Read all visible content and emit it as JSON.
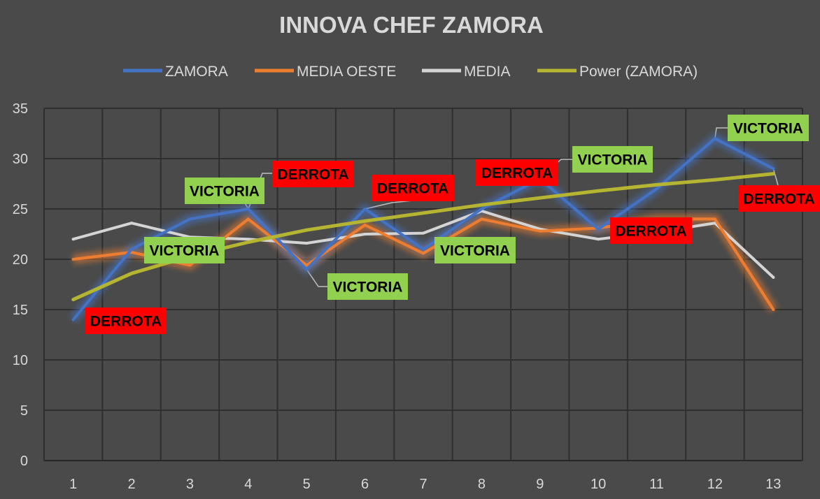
{
  "chart_data": {
    "type": "line",
    "title": "INNOVA CHEF ZAMORA",
    "xlabel": "",
    "ylabel": "",
    "categories": [
      "1",
      "2",
      "3",
      "4",
      "5",
      "6",
      "7",
      "8",
      "9",
      "10",
      "11",
      "12",
      "13"
    ],
    "ylim": [
      0,
      35
    ],
    "yticks": [
      "0",
      "5",
      "10",
      "15",
      "20",
      "25",
      "30",
      "35"
    ],
    "grid": true,
    "legend_position": "top",
    "series": [
      {
        "name": "ZAMORA",
        "color": "#4472c4",
        "glow": true,
        "values": [
          14,
          21,
          24,
          25,
          19,
          25,
          21,
          25,
          28,
          23,
          27,
          32,
          29
        ]
      },
      {
        "name": "MEDIA OESTE",
        "color": "#ed7d31",
        "glow": true,
        "values": [
          20,
          20.7,
          19.4,
          24,
          19.4,
          23.4,
          20.6,
          24,
          22.8,
          23.1,
          24,
          24,
          15
        ]
      },
      {
        "name": "MEDIA",
        "color": "#d4d4d4",
        "glow": false,
        "values": [
          22,
          23.6,
          22.2,
          22,
          21.6,
          22.5,
          22.6,
          24.8,
          23,
          22,
          22.7,
          23.6,
          18.2
        ]
      },
      {
        "name": "Power (ZAMORA)",
        "color": "#b5b531",
        "glow": false,
        "trendline": true,
        "values": [
          16,
          18.6,
          20.3,
          21.7,
          22.9,
          23.8,
          24.6,
          25.4,
          26.1,
          26.8,
          27.4,
          27.9,
          28.5
        ]
      }
    ],
    "annotations": [
      {
        "point": 1,
        "text": "DERROTA",
        "result": "loss"
      },
      {
        "point": 2,
        "text": "VICTORIA",
        "result": "win"
      },
      {
        "point": 3,
        "text": "VICTORIA",
        "result": "win"
      },
      {
        "point": 4,
        "text": "DERROTA",
        "result": "loss"
      },
      {
        "point": 5,
        "text": "VICTORIA",
        "result": "win"
      },
      {
        "point": 6,
        "text": "DERROTA",
        "result": "loss"
      },
      {
        "point": 7,
        "text": "VICTORIA",
        "result": "win"
      },
      {
        "point": 8,
        "text": "DERROTA",
        "result": "loss"
      },
      {
        "point": 9,
        "text": "VICTORIA",
        "result": "win"
      },
      {
        "point": 10,
        "text": "DERROTA",
        "result": "loss"
      },
      {
        "point": 12,
        "text": "VICTORIA",
        "result": "win"
      },
      {
        "point": 13,
        "text": "DERROTA",
        "result": "loss"
      }
    ],
    "colors": {
      "win_bg": "#92d050",
      "loss_bg": "#ff0000",
      "win_text": "#000000",
      "loss_text": "#000000",
      "leader": "#bfbfbf"
    }
  }
}
